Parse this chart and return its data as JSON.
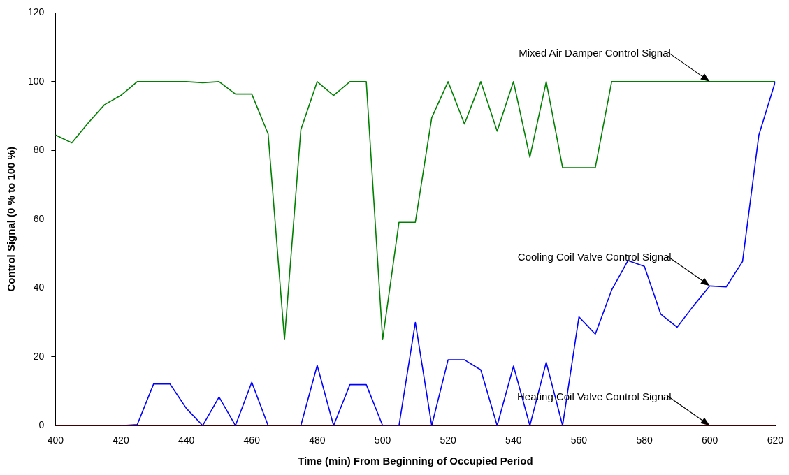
{
  "chart_data": {
    "type": "line",
    "xlabel": "Time (min) From Beginning of Occupied Period",
    "ylabel": "Control Signal (0 % to 100 %)",
    "x": [
      400,
      405,
      410,
      415,
      420,
      425,
      430,
      435,
      440,
      445,
      450,
      455,
      460,
      465,
      470,
      475,
      480,
      485,
      490,
      495,
      500,
      505,
      510,
      515,
      520,
      525,
      530,
      535,
      540,
      545,
      550,
      555,
      560,
      565,
      570,
      575,
      580,
      585,
      590,
      595,
      600,
      605,
      610,
      615,
      620
    ],
    "series": [
      {
        "name": "Mixed Air Damper Control Signal",
        "color": "#008000",
        "values": [
          84.5,
          82.2,
          88,
          93.3,
          96,
          100,
          100,
          100,
          100,
          99.7,
          100,
          96.4,
          96.4,
          84.8,
          25,
          86,
          100,
          96,
          100,
          100,
          25,
          59.1,
          59.1,
          89.5,
          100,
          87.7,
          100,
          85.6,
          100,
          78,
          100,
          75,
          75,
          75,
          100,
          100,
          100,
          100,
          100,
          100,
          100,
          100,
          100,
          100,
          100
        ]
      },
      {
        "name": "Cooling Coil Valve Control Signal",
        "color": "#0000ff",
        "values": [
          null,
          null,
          null,
          null,
          0,
          0.3,
          12.1,
          12.1,
          5,
          0,
          8.3,
          0,
          12.6,
          0,
          null,
          0,
          17.5,
          0,
          11.9,
          11.9,
          0,
          0,
          30,
          0,
          19.1,
          19.1,
          16.2,
          0,
          17.3,
          0,
          18.4,
          0,
          31.6,
          26.6,
          39.4,
          48,
          46.3,
          32.4,
          28.6,
          34.8,
          40.6,
          40.3,
          47.7,
          84.5,
          100
        ]
      },
      {
        "name": "Heating Coil Valve Control Signal",
        "color": "#ff0000",
        "values": [
          0,
          0,
          0,
          0,
          0,
          0,
          0,
          0,
          0,
          0,
          0,
          0,
          0,
          0,
          0,
          0,
          0,
          0,
          0,
          0,
          0,
          0,
          0,
          0,
          0,
          0,
          0,
          0,
          0,
          0,
          0,
          0,
          0,
          0,
          0,
          0,
          0,
          0,
          0,
          0,
          0,
          0,
          0,
          0,
          0
        ]
      }
    ],
    "xlim": [
      400,
      620
    ],
    "xticks": [
      400,
      420,
      440,
      460,
      480,
      500,
      520,
      540,
      560,
      580,
      600,
      620
    ],
    "ylim": [
      0,
      120
    ],
    "yticks": [
      0,
      20,
      40,
      60,
      80,
      100,
      120
    ],
    "grid": false,
    "legend": false,
    "marker": "none",
    "line_style": "solid"
  }
}
